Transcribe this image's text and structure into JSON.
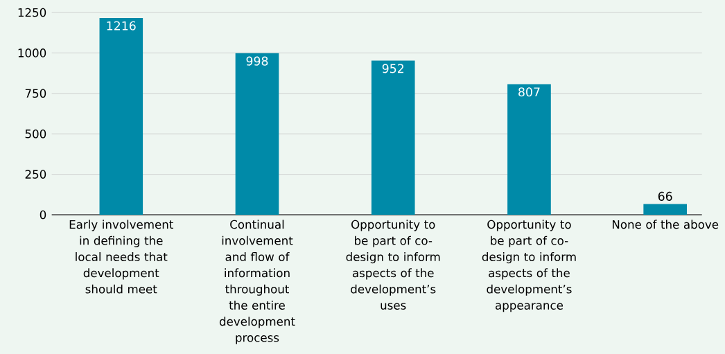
{
  "chart_data": {
    "type": "bar",
    "categories": [
      "Early involvement in defining the local needs that development should meet",
      "Continual involvement and flow of information throughout the entire development process",
      "Opportunity to be part of co-design to inform aspects of the development’s uses",
      "Opportunity to be part of co-design to inform aspects of the development’s appearance",
      "None of the above"
    ],
    "values": [
      1216,
      998,
      952,
      807,
      66
    ],
    "color": "#008aa8",
    "ylim": [
      0,
      1250
    ],
    "yticks": [
      0,
      250,
      500,
      750,
      1000,
      1250
    ],
    "grid": "y",
    "data_labels": true
  }
}
